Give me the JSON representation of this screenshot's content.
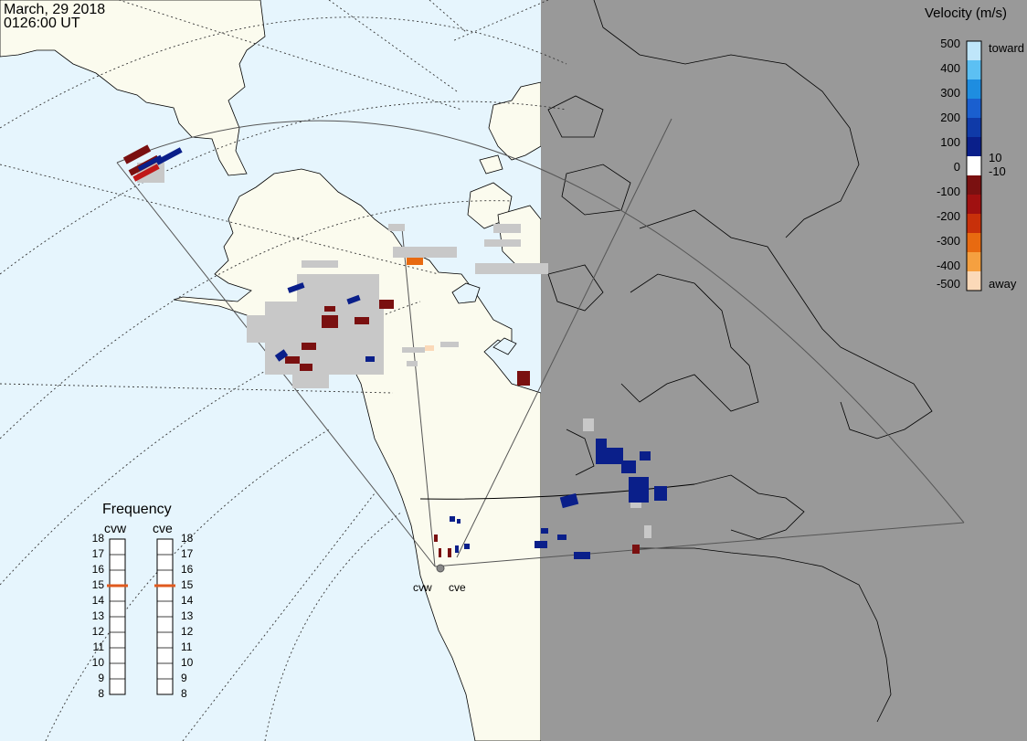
{
  "header": {
    "date": "March, 29 2018",
    "time": "0126:00 UT"
  },
  "colors": {
    "ocean": "#e6f5fd",
    "land_day": "#fbfbee",
    "night": "#999999",
    "ground_scatter": "#c8c8c8",
    "coastline": "#000000"
  },
  "velocity_legend": {
    "title": "Velocity (m/s)",
    "ticks": [
      "500",
      "400",
      "300",
      "200",
      "100",
      "0",
      "-100",
      "-200",
      "-300",
      "-400",
      "-500"
    ],
    "threshold_pos": "10",
    "threshold_neg": "-10",
    "toward_label": "toward",
    "away_label": "away",
    "colors_top_to_bottom": [
      "#bfe6fa",
      "#5cc0f3",
      "#1e8de0",
      "#1a5fcf",
      "#0f3aa8",
      "#0a1f8a",
      "#ffffff",
      "#7a1010",
      "#a01010",
      "#c8300a",
      "#e86a10",
      "#f5a040",
      "#fbd9b8"
    ]
  },
  "frequency": {
    "title": "Frequency",
    "radars": [
      {
        "name": "cvw",
        "value_mhz": 15
      },
      {
        "name": "cve",
        "value_mhz": 15
      }
    ],
    "scale": [
      "18",
      "17",
      "16",
      "15",
      "14",
      "13",
      "12",
      "11",
      "10",
      "9",
      "8"
    ],
    "marker_color": "#e05a1e"
  },
  "sites": [
    {
      "name": "cvw"
    },
    {
      "name": "cve"
    }
  ]
}
